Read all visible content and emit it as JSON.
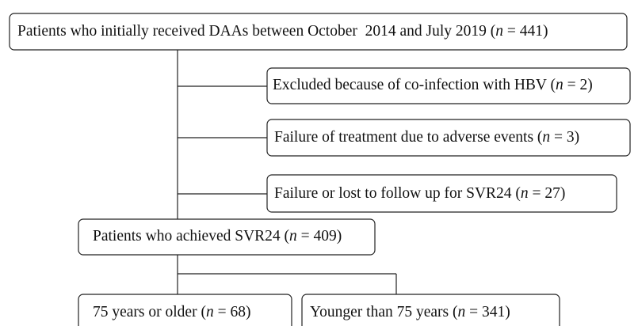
{
  "nodes": [
    {
      "pre": "Patients who initially received DAAs between October  2014 and July 2019 (",
      "var": "n",
      "post": " = 441)"
    },
    {
      "pre": "Excluded because of co-infection with HBV (",
      "var": "n",
      "post": " = 2)"
    },
    {
      "pre": "Failure of treatment due to adverse events (",
      "var": "n",
      "post": " = 3)"
    },
    {
      "pre": "Failure or lost to follow up for SVR24 (",
      "var": "n",
      "post": " = 27)"
    },
    {
      "pre": "Patients who achieved SVR24 (",
      "var": "n",
      "post": " = 409)"
    },
    {
      "pre": "75 years or older (",
      "var": "n",
      "post": " = 68)"
    },
    {
      "pre": "Younger than 75 years (",
      "var": "n",
      "post": " = 341)"
    }
  ]
}
